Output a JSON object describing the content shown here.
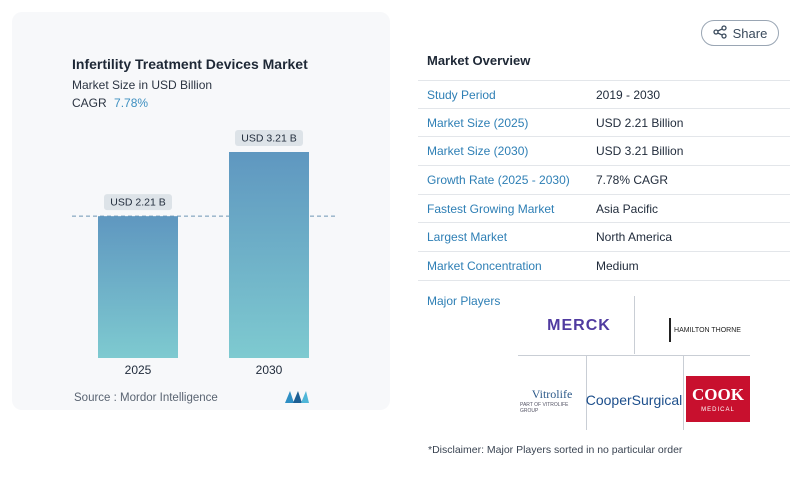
{
  "chart_card": {
    "title": "Infertility Treatment Devices Market",
    "subtitle": "Market Size in USD Billion",
    "cagr_label": "CAGR",
    "cagr_value": "7.78%",
    "source": "Source :  Mordor Intelligence"
  },
  "chart_data": {
    "type": "bar",
    "categories": [
      "2025",
      "2030"
    ],
    "values": [
      2.21,
      3.21
    ],
    "data_labels": [
      "USD 2.21 B",
      "USD 3.21 B"
    ],
    "title": "Infertility Treatment Devices Market",
    "subtitle": "Market Size in USD Billion",
    "ylim": [
      0,
      3.21
    ],
    "reference_line_at": 2.21,
    "colors": {
      "bar_top": "#5f97c0",
      "bar_bottom": "#7ecad0",
      "label_bg": "#dde3e8",
      "ref_line": "#6e95b5"
    }
  },
  "share": {
    "label": "Share",
    "icon": "share-icon"
  },
  "overview": {
    "title": "Market Overview",
    "rows": [
      {
        "label": "Study Period",
        "value": "2019 - 2030"
      },
      {
        "label": "Market Size (2025)",
        "value": "USD 2.21 Billion"
      },
      {
        "label": "Market Size (2030)",
        "value": "USD 3.21 Billion"
      },
      {
        "label": "Growth Rate (2025 - 2030)",
        "value": "7.78% CAGR"
      },
      {
        "label": "Fastest Growing Market",
        "value": "Asia Pacific"
      },
      {
        "label": "Largest Market",
        "value": "North America"
      },
      {
        "label": "Market Concentration",
        "value": "Medium"
      }
    ]
  },
  "players": {
    "title": "Major Players",
    "logos": {
      "merck": "MERCK",
      "hamilton": "HAMILTON THORNE",
      "vitrolife": "Vitrolife",
      "vitrolife_tag": "PART OF VITROLIFE GROUP",
      "cooper": "CooperSurgical",
      "cook_top": "COOK",
      "cook_bottom": "MEDICAL"
    }
  },
  "disclaimer": "*Disclaimer: Major Players sorted in no particular order",
  "accent_colors": {
    "link": "#2e7fb5",
    "cagr": "#3d8fc0",
    "cook_red": "#c8102e"
  }
}
